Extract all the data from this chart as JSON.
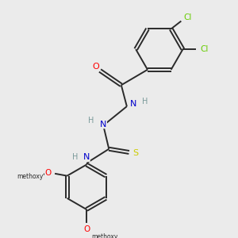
{
  "bg_color": "#ebebeb",
  "bond_color": "#2a2a2a",
  "atom_colors": {
    "O": "#ff0000",
    "N": "#0000cc",
    "S": "#cccc00",
    "Cl": "#66cc00",
    "C": "#2a2a2a",
    "H": "#7a9a9a"
  },
  "figsize": [
    3.0,
    3.0
  ],
  "dpi": 100,
  "lw": 1.4
}
